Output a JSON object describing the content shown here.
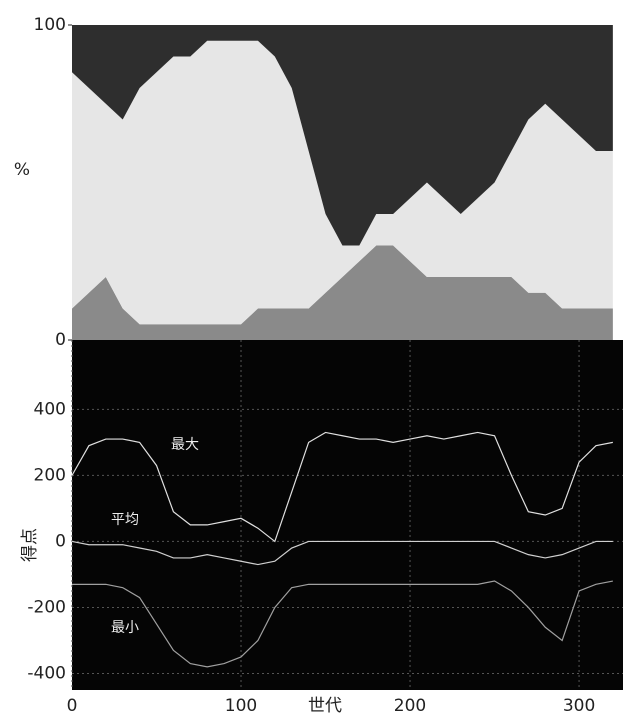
{
  "chart_data": [
    {
      "type": "area",
      "stacked": true,
      "ylabel": "%",
      "x": [
        0,
        10,
        20,
        30,
        40,
        50,
        60,
        70,
        80,
        90,
        100,
        110,
        120,
        130,
        140,
        150,
        160,
        170,
        180,
        190,
        200,
        210,
        220,
        230,
        240,
        250,
        260,
        270,
        280,
        290,
        300,
        310,
        320
      ],
      "xlim": [
        0,
        326
      ],
      "ylim": [
        0,
        100
      ],
      "yticks": [
        0,
        100
      ],
      "series": [
        {
          "color": "#8a8a8a",
          "values": [
            10,
            15,
            20,
            10,
            5,
            5,
            5,
            5,
            5,
            5,
            5,
            10,
            10,
            10,
            10,
            15,
            20,
            25,
            30,
            30,
            25,
            20,
            20,
            20,
            20,
            20,
            20,
            15,
            15,
            10,
            10,
            10,
            10
          ]
        },
        {
          "color": "#e6e6e6",
          "values": [
            75,
            65,
            55,
            60,
            75,
            80,
            85,
            85,
            90,
            90,
            90,
            85,
            80,
            70,
            50,
            25,
            10,
            5,
            10,
            10,
            20,
            30,
            25,
            20,
            25,
            30,
            40,
            55,
            60,
            60,
            55,
            50,
            50
          ]
        },
        {
          "color": "#2e2e2e",
          "values": [
            15,
            20,
            25,
            30,
            20,
            15,
            10,
            10,
            5,
            5,
            5,
            5,
            10,
            20,
            40,
            60,
            70,
            70,
            60,
            60,
            55,
            50,
            55,
            60,
            55,
            50,
            40,
            30,
            25,
            30,
            35,
            40,
            40
          ]
        }
      ]
    },
    {
      "type": "line",
      "xlabel": "世代",
      "ylabel": "得点",
      "grid": true,
      "x": [
        0,
        10,
        20,
        30,
        40,
        50,
        60,
        70,
        80,
        90,
        100,
        110,
        120,
        130,
        140,
        150,
        160,
        170,
        180,
        190,
        200,
        210,
        220,
        230,
        240,
        250,
        260,
        270,
        280,
        290,
        300,
        310,
        320
      ],
      "xlim": [
        0,
        326
      ],
      "ylim": [
        -450,
        610
      ],
      "xticks": [
        0,
        100,
        200,
        300
      ],
      "yticks": [
        -400,
        -200,
        0,
        200,
        400
      ],
      "series": [
        {
          "name": "最大",
          "color": "#e0e0e0",
          "values": [
            200,
            290,
            310,
            310,
            300,
            230,
            90,
            50,
            50,
            60,
            70,
            40,
            0,
            150,
            300,
            330,
            320,
            310,
            310,
            300,
            310,
            320,
            310,
            320,
            330,
            320,
            200,
            90,
            80,
            100,
            240,
            290,
            300
          ]
        },
        {
          "name": "平均",
          "color": "#d0d0d0",
          "values": [
            0,
            -10,
            -10,
            -10,
            -20,
            -30,
            -50,
            -50,
            -40,
            -50,
            -60,
            -70,
            -60,
            -20,
            0,
            0,
            0,
            0,
            0,
            0,
            0,
            0,
            0,
            0,
            0,
            0,
            -20,
            -40,
            -50,
            -40,
            -20,
            0,
            0
          ]
        },
        {
          "name": "最小",
          "color": "#a0a0a0",
          "values": [
            -130,
            -130,
            -130,
            -140,
            -170,
            -250,
            -330,
            -370,
            -380,
            -370,
            -350,
            -300,
            -200,
            -140,
            -130,
            -130,
            -130,
            -130,
            -130,
            -130,
            -130,
            -130,
            -130,
            -130,
            -130,
            -120,
            -150,
            -200,
            -260,
            -300,
            -150,
            -130,
            -120
          ]
        }
      ]
    }
  ]
}
